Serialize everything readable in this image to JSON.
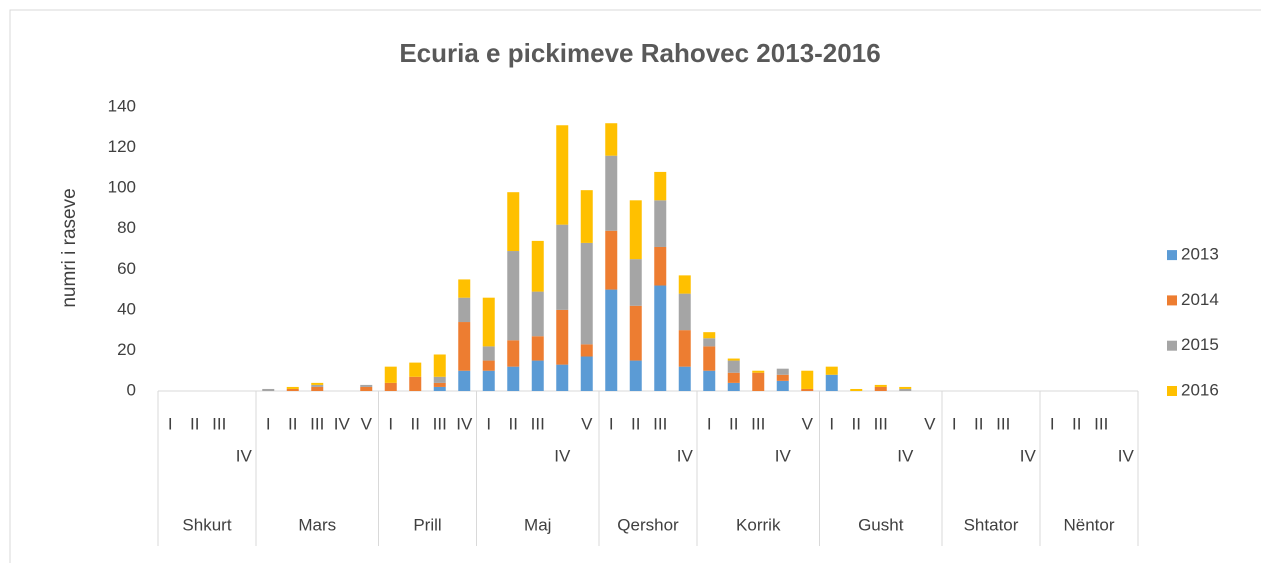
{
  "chart_data": {
    "type": "stacked_bar",
    "title": "Ecuria  e pickimeve Rahovec 2013-2016",
    "y_label": "numri i raseve",
    "category_groups": [
      {
        "label": "Shkurt",
        "categories": [
          "I",
          "II",
          "III",
          "IV"
        ]
      },
      {
        "label": "Mars",
        "categories": [
          "I",
          "II",
          "III",
          "IV",
          "V"
        ]
      },
      {
        "label": "Prill",
        "categories": [
          "I",
          "II",
          "III",
          "IV"
        ]
      },
      {
        "label": "Maj",
        "categories": [
          "I",
          "II",
          "III",
          "IV",
          "V"
        ]
      },
      {
        "label": "Qershor",
        "categories": [
          "I",
          "II",
          "III",
          "IV"
        ]
      },
      {
        "label": "Korrik",
        "categories": [
          "I",
          "II",
          "III",
          "IV",
          "V"
        ]
      },
      {
        "label": "Gusht",
        "categories": [
          "I",
          "II",
          "III",
          "IV",
          "V"
        ]
      },
      {
        "label": "Shtator",
        "categories": [
          "I",
          "II",
          "III",
          "IV"
        ]
      },
      {
        "label": "Nëntor",
        "categories": [
          "I",
          "II",
          "III",
          "IV"
        ]
      }
    ],
    "series": [
      {
        "name": "2013",
        "color": "#5b9bd5",
        "values": [
          0,
          0,
          0,
          0,
          0,
          0,
          0,
          0,
          0,
          0,
          0,
          2,
          10,
          10,
          12,
          15,
          13,
          17,
          50,
          15,
          52,
          12,
          10,
          4,
          0,
          5,
          0,
          8,
          0,
          0,
          0,
          0,
          0,
          0,
          0,
          0,
          0,
          0,
          0,
          0
        ]
      },
      {
        "name": "2014",
        "color": "#ed7d31",
        "values": [
          0,
          0,
          0,
          0,
          0,
          1,
          2,
          0,
          2,
          4,
          7,
          2,
          24,
          5,
          13,
          12,
          27,
          6,
          29,
          27,
          19,
          18,
          12,
          5,
          9,
          3,
          1,
          0,
          0,
          2,
          0,
          0,
          0,
          0,
          0,
          0,
          0,
          0,
          0,
          0
        ]
      },
      {
        "name": "2015",
        "color": "#a5a5a5",
        "values": [
          0,
          0,
          0,
          0,
          1,
          0,
          1,
          0,
          1,
          0,
          0,
          3,
          12,
          7,
          44,
          22,
          42,
          50,
          37,
          23,
          23,
          18,
          4,
          6,
          0,
          3,
          0,
          0,
          0,
          0,
          1,
          0,
          0,
          0,
          0,
          0,
          0,
          0,
          0,
          0
        ]
      },
      {
        "name": "2016",
        "color": "#ffc000",
        "values": [
          0,
          0,
          0,
          0,
          0,
          1,
          1,
          0,
          0,
          8,
          7,
          11,
          9,
          24,
          29,
          25,
          49,
          26,
          16,
          29,
          14,
          9,
          3,
          1,
          1,
          0,
          9,
          4,
          1,
          1,
          1,
          0,
          0,
          0,
          0,
          0,
          0,
          0,
          0,
          0
        ]
      }
    ],
    "ylim": [
      0,
      140
    ],
    "yticks": [
      0,
      20,
      40,
      60,
      80,
      100,
      120,
      140
    ],
    "legend": "right"
  }
}
